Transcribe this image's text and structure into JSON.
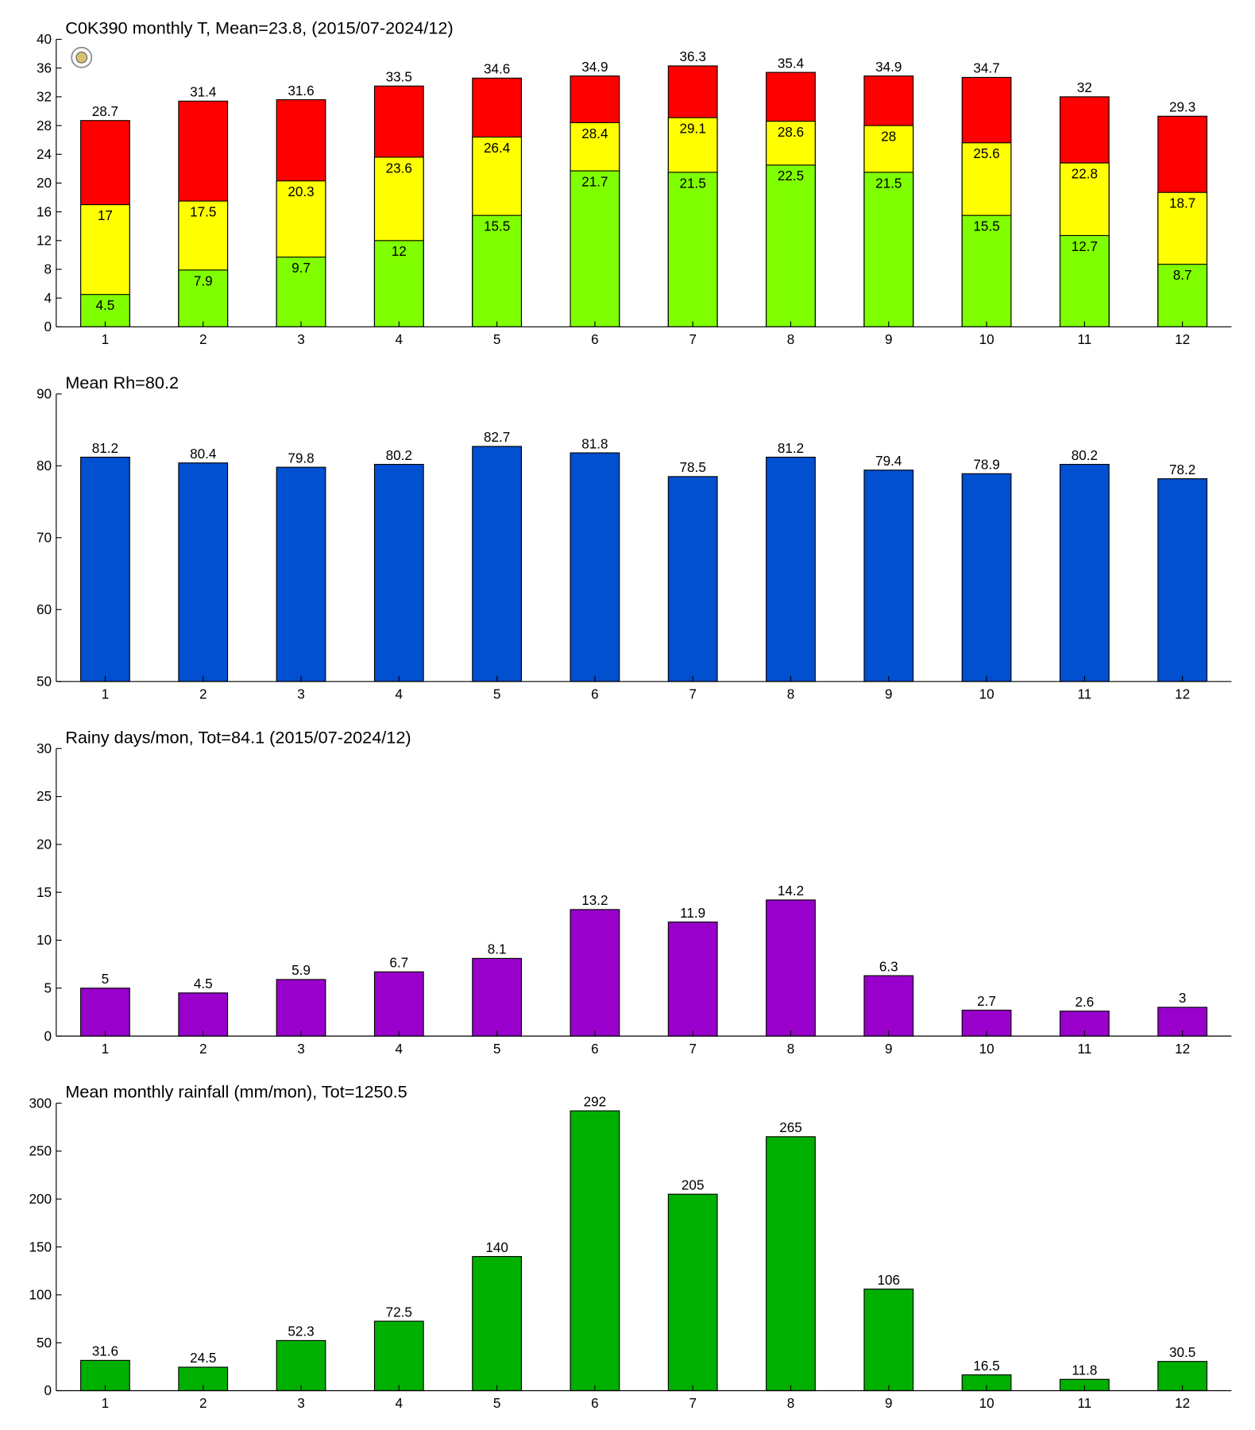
{
  "chart_data": [
    {
      "type": "bar",
      "barmode": "overlay",
      "title": "C0K390 monthly T, Mean=23.8, (2015/07-2024/12)",
      "categories": [
        "1",
        "2",
        "3",
        "4",
        "5",
        "6",
        "7",
        "8",
        "9",
        "10",
        "11",
        "12"
      ],
      "series": [
        {
          "color": "#ff0000",
          "values": [
            28.7,
            31.4,
            31.6,
            33.5,
            34.6,
            34.9,
            36.3,
            35.4,
            34.9,
            34.7,
            32,
            29.3
          ]
        },
        {
          "color": "#ffff00",
          "values": [
            17,
            17.5,
            20.3,
            23.6,
            26.4,
            28.4,
            29.1,
            28.6,
            28,
            25.6,
            22.8,
            18.7
          ]
        },
        {
          "color": "#80ff00",
          "values": [
            4.5,
            7.9,
            9.7,
            12,
            15.5,
            21.7,
            21.5,
            22.5,
            21.5,
            15.5,
            12.7,
            8.7
          ]
        }
      ],
      "ylim": [
        0,
        40
      ],
      "yticks": [
        0,
        4,
        8,
        12,
        16,
        20,
        24,
        28,
        32,
        36,
        40
      ]
    },
    {
      "type": "bar",
      "title": "Mean Rh=80.2",
      "categories": [
        "1",
        "2",
        "3",
        "4",
        "5",
        "6",
        "7",
        "8",
        "9",
        "10",
        "11",
        "12"
      ],
      "series": [
        {
          "color": "#0050d0",
          "values": [
            81.2,
            80.4,
            79.8,
            80.2,
            82.7,
            81.8,
            78.5,
            81.2,
            79.4,
            78.9,
            80.2,
            78.2
          ]
        }
      ],
      "ylim": [
        50,
        90
      ],
      "yticks": [
        50,
        60,
        70,
        80,
        90
      ]
    },
    {
      "type": "bar",
      "title": "Rainy days/mon, Tot=84.1 (2015/07-2024/12)",
      "categories": [
        "1",
        "2",
        "3",
        "4",
        "5",
        "6",
        "7",
        "8",
        "9",
        "10",
        "11",
        "12"
      ],
      "series": [
        {
          "color": "#9900cc",
          "values": [
            5,
            4.5,
            5.9,
            6.7,
            8.1,
            13.2,
            11.9,
            14.2,
            6.3,
            2.7,
            2.6,
            3
          ]
        }
      ],
      "ylim": [
        0,
        30
      ],
      "yticks": [
        0,
        5,
        10,
        15,
        20,
        25,
        30
      ]
    },
    {
      "type": "bar",
      "title": "Mean monthly rainfall (mm/mon), Tot=1250.5",
      "categories": [
        "1",
        "2",
        "3",
        "4",
        "5",
        "6",
        "7",
        "8",
        "9",
        "10",
        "11",
        "12"
      ],
      "series": [
        {
          "color": "#00b000",
          "values": [
            31.6,
            24.5,
            52.3,
            72.5,
            140,
            292,
            205,
            265,
            106,
            16.5,
            11.8,
            30.5
          ]
        }
      ],
      "ylim": [
        0,
        300
      ],
      "yticks": [
        0,
        50,
        100,
        150,
        200,
        250,
        300
      ]
    }
  ]
}
